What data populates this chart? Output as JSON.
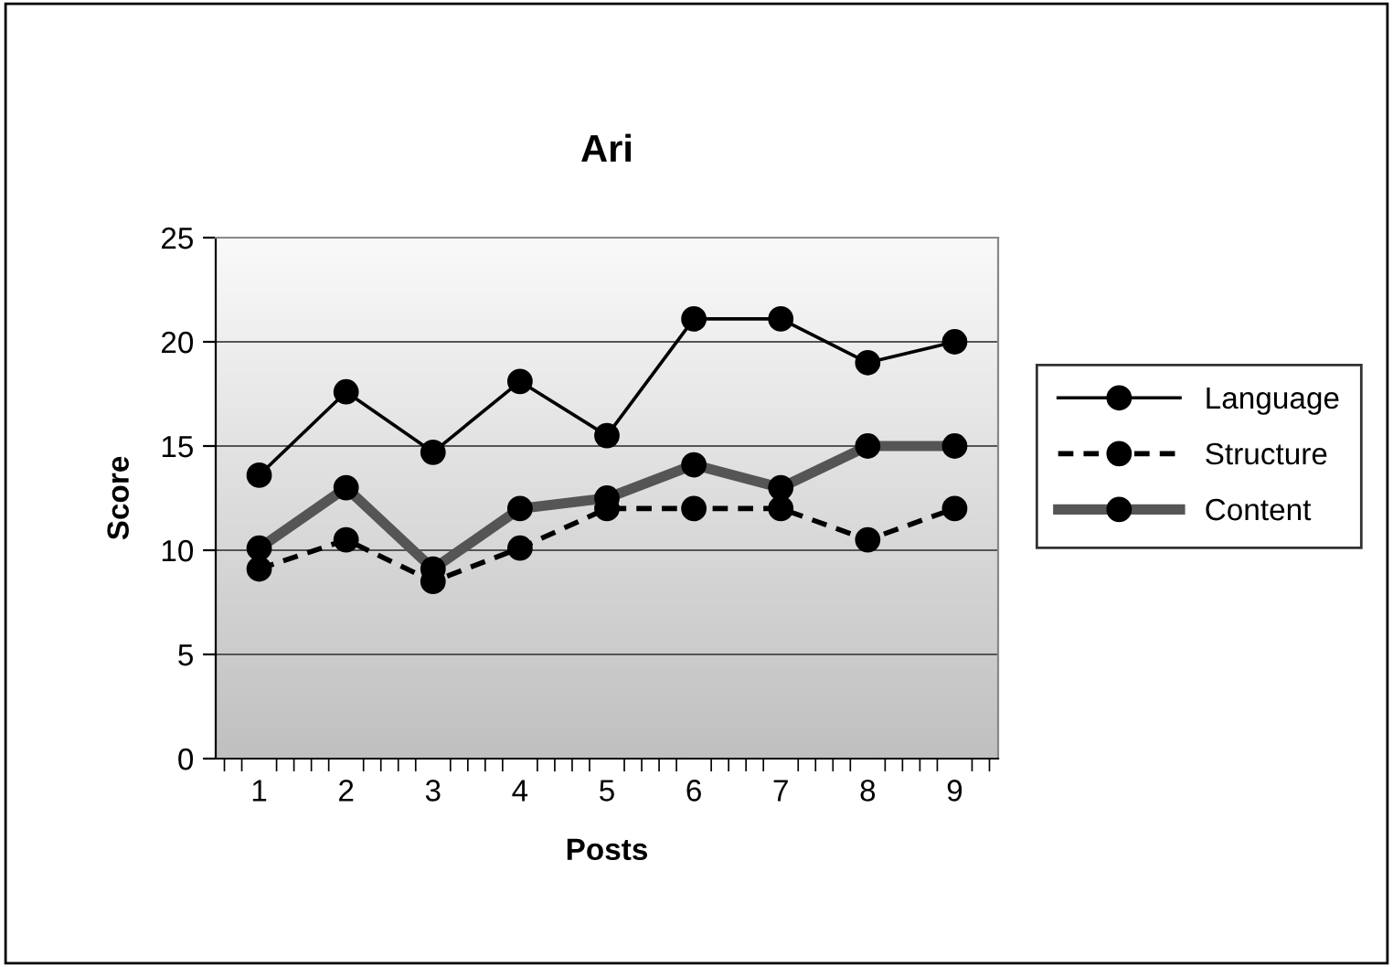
{
  "chart_data": {
    "type": "line",
    "title": "Ari",
    "xlabel": "Posts",
    "ylabel": "Score",
    "categories": [
      "1",
      "2",
      "3",
      "4",
      "5",
      "6",
      "7",
      "8",
      "9"
    ],
    "series": [
      {
        "name": "Language",
        "color": "#000000",
        "line_style": "solid",
        "values": [
          13.6,
          17.6,
          14.7,
          18.1,
          15.5,
          21.1,
          21.1,
          19.0,
          20.0
        ]
      },
      {
        "name": "Structure",
        "color": "#000000",
        "line_style": "dashed",
        "values": [
          9.1,
          10.5,
          8.5,
          10.1,
          12.0,
          12.0,
          12.0,
          10.5,
          12.0
        ]
      },
      {
        "name": "Content",
        "color": "#555555",
        "line_style": "solid",
        "values": [
          10.1,
          13.0,
          9.1,
          12.0,
          12.5,
          14.1,
          13.0,
          15.0,
          15.0
        ]
      }
    ],
    "ylim": [
      0,
      25
    ],
    "yticks": [
      0,
      5,
      10,
      15,
      20,
      25
    ],
    "grid": "y",
    "legend": "right",
    "marker": "circle"
  }
}
